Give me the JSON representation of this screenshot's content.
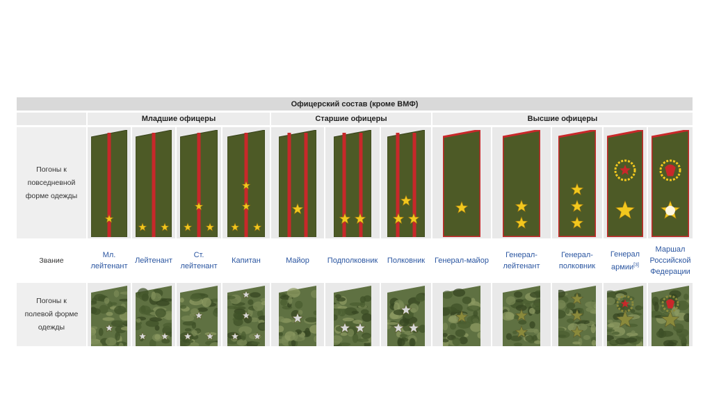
{
  "table": {
    "title": "Офицерский состав (кроме ВМФ)",
    "groups": [
      "Младшие офицеры",
      "Старшие офицеры",
      "Высшие офицеры"
    ],
    "row_labels": {
      "everyday": "Погоны к повседневной форме одежды",
      "rank": "Звание",
      "field": "Погоны к полевой форме одежды"
    },
    "ranks": [
      {
        "name": "Мл. лейтенант",
        "group": "Младшие офицеры",
        "stars": 1,
        "stripes": 1
      },
      {
        "name": "Лейтенант",
        "group": "Младшие офицеры",
        "stars": 2,
        "stripes": 1
      },
      {
        "name": "Ст. лейтенант",
        "group": "Младшие офицеры",
        "stars": 3,
        "stripes": 1
      },
      {
        "name": "Капитан",
        "group": "Младшие офицеры",
        "stars": 4,
        "stripes": 1
      },
      {
        "name": "Майор",
        "group": "Старшие офицеры",
        "stars": 1,
        "stripes": 2
      },
      {
        "name": "Подполковник",
        "group": "Старшие офицеры",
        "stars": 2,
        "stripes": 2
      },
      {
        "name": "Полковник",
        "group": "Старшие офицеры",
        "stars": 3,
        "stripes": 2
      },
      {
        "name": "Генерал-майор",
        "group": "Высшие офицеры",
        "stars": 1,
        "stripes": 0
      },
      {
        "name": "Генерал-лейтенант",
        "group": "Высшие офицеры",
        "stars": 2,
        "stripes": 0
      },
      {
        "name": "Генерал-полковник",
        "group": "Высшие офицеры",
        "stars": 3,
        "stripes": 0
      },
      {
        "name": "Генерал армии",
        "footnote": "[3]",
        "group": "Высшие офицеры",
        "stars": 1,
        "stripes": 0,
        "emblem": "red-star-wreath"
      },
      {
        "name": "Маршал Российской Федерации",
        "group": "Высшие офицеры",
        "stars": 1,
        "stripes": 0,
        "emblem": "double-headed-eagle"
      }
    ]
  },
  "colors": {
    "strap_green": "#4d5a26",
    "strap_edge": "#36411a",
    "stripe_red": "#c8282a",
    "star_gold": "#f2c81e",
    "field_camo_base": "#5f7142",
    "field_star_silver": "#d8d8d8",
    "field_star_khaki": "#8a8a3c",
    "link_blue": "#2a55a0",
    "header_gray": "#d9d9d9"
  }
}
